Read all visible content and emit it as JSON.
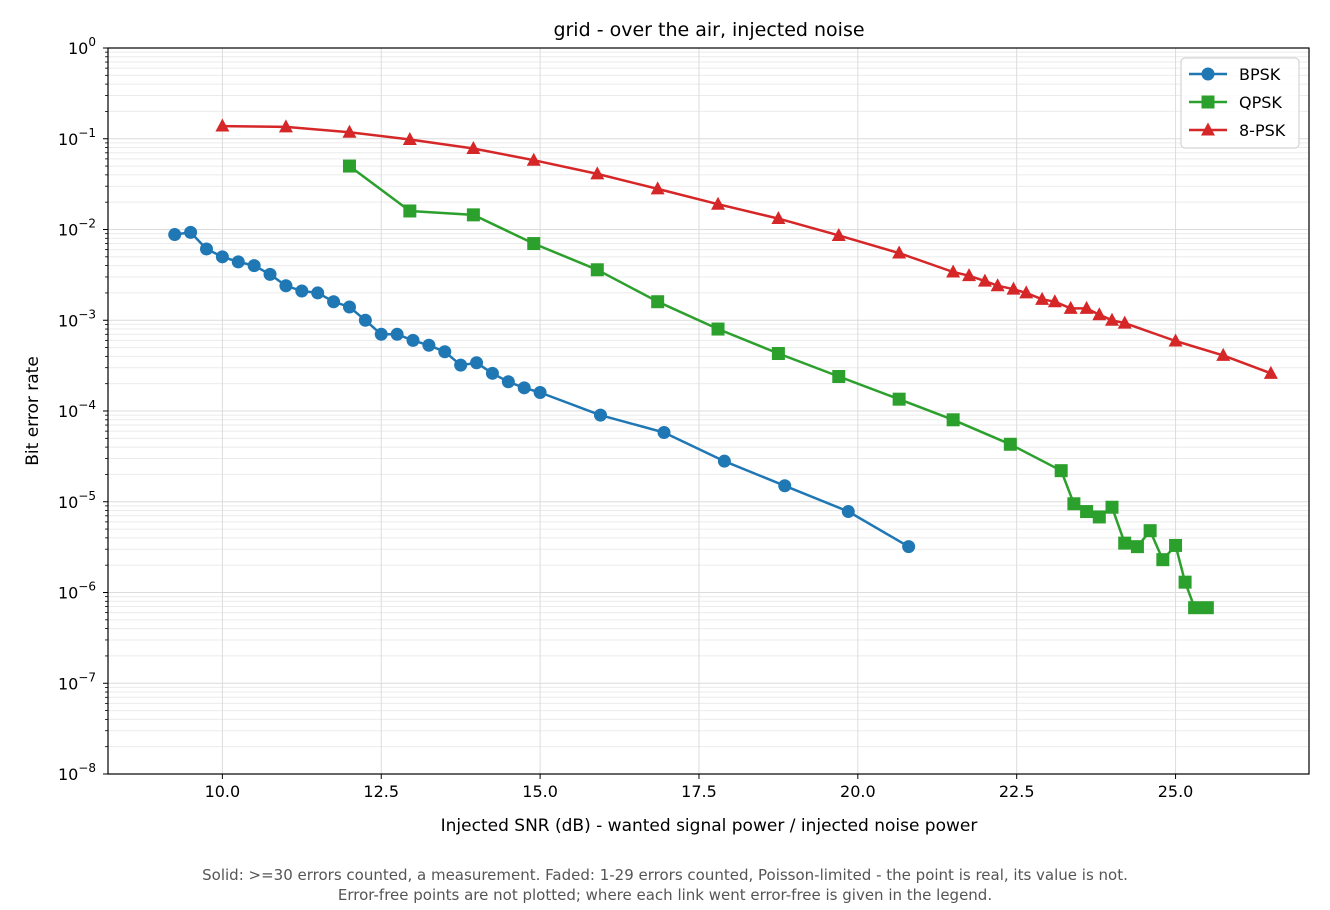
{
  "chart_data": {
    "type": "line",
    "title": "grid - over the air, injected noise",
    "xlabel": "Injected SNR (dB)  -  wanted signal power / injected noise power",
    "ylabel": "Bit error rate",
    "yscale": "log",
    "xlim": [
      8.2,
      27.1
    ],
    "ylim": [
      1e-08,
      1
    ],
    "xticks": [
      10.0,
      12.5,
      15.0,
      17.5,
      20.0,
      22.5,
      25.0
    ],
    "xtick_labels": [
      "10.0",
      "12.5",
      "15.0",
      "17.5",
      "20.0",
      "22.5",
      "25.0"
    ],
    "ytick_exponents": [
      0,
      -1,
      -2,
      -3,
      -4,
      -5,
      -6,
      -7,
      -8
    ],
    "ytick_base": "10",
    "grid": true,
    "legend_position": "top-right",
    "series": [
      {
        "name": "BPSK",
        "color": "#1f77b4",
        "marker": "circle",
        "points": [
          [
            9.25,
            0.0088
          ],
          [
            9.5,
            0.0093
          ],
          [
            9.75,
            0.0061
          ],
          [
            10.0,
            0.005
          ],
          [
            10.25,
            0.0044
          ],
          [
            10.5,
            0.004
          ],
          [
            10.75,
            0.0032
          ],
          [
            11.0,
            0.0024
          ],
          [
            11.25,
            0.0021
          ],
          [
            11.5,
            0.002
          ],
          [
            11.75,
            0.0016
          ],
          [
            12.0,
            0.0014
          ],
          [
            12.25,
            0.001
          ],
          [
            12.5,
            0.0007
          ],
          [
            12.75,
            0.0007
          ],
          [
            13.0,
            0.0006
          ],
          [
            13.25,
            0.00053
          ],
          [
            13.5,
            0.00045
          ],
          [
            13.75,
            0.00032
          ],
          [
            14.0,
            0.00034
          ],
          [
            14.25,
            0.00026
          ],
          [
            14.5,
            0.00021
          ],
          [
            14.75,
            0.00018
          ],
          [
            15.0,
            0.00016
          ],
          [
            15.95,
            9e-05
          ],
          [
            16.95,
            5.8e-05
          ],
          [
            17.9,
            2.8e-05
          ],
          [
            18.85,
            1.5e-05
          ],
          [
            19.85,
            7.8e-06
          ],
          [
            20.8,
            3.2e-06
          ]
        ]
      },
      {
        "name": "QPSK",
        "color": "#2ca02c",
        "marker": "square",
        "points": [
          [
            12.0,
            0.05
          ],
          [
            12.95,
            0.016
          ],
          [
            13.95,
            0.0145
          ],
          [
            14.9,
            0.007
          ],
          [
            15.9,
            0.0036
          ],
          [
            16.85,
            0.0016
          ],
          [
            17.8,
            0.0008
          ],
          [
            18.75,
            0.00043
          ],
          [
            19.7,
            0.00024
          ],
          [
            20.65,
            0.000135
          ],
          [
            21.5,
            8e-05
          ],
          [
            22.4,
            4.3e-05
          ],
          [
            23.2,
            2.2e-05
          ],
          [
            23.4,
            9.5e-06
          ],
          [
            23.6,
            7.8e-06
          ],
          [
            23.8,
            6.8e-06
          ],
          [
            24.0,
            8.7e-06
          ],
          [
            24.2,
            3.5e-06
          ],
          [
            24.4,
            3.2e-06
          ],
          [
            24.6,
            4.8e-06
          ],
          [
            24.8,
            2.3e-06
          ],
          [
            25.0,
            3.3e-06
          ],
          [
            25.15,
            1.3e-06
          ],
          [
            25.3,
            6.8e-07
          ],
          [
            25.5,
            6.8e-07
          ]
        ]
      },
      {
        "name": "8-PSK",
        "color": "#d62728",
        "marker": "triangle",
        "points": [
          [
            10.0,
            0.138
          ],
          [
            11.0,
            0.135
          ],
          [
            12.0,
            0.118
          ],
          [
            12.95,
            0.098
          ],
          [
            13.95,
            0.078
          ],
          [
            14.9,
            0.058
          ],
          [
            15.9,
            0.041
          ],
          [
            16.85,
            0.028
          ],
          [
            17.8,
            0.019
          ],
          [
            18.75,
            0.0132
          ],
          [
            19.7,
            0.0086
          ],
          [
            20.65,
            0.0055
          ],
          [
            21.5,
            0.0034
          ],
          [
            21.75,
            0.0031
          ],
          [
            22.0,
            0.0027
          ],
          [
            22.2,
            0.0024
          ],
          [
            22.45,
            0.0022
          ],
          [
            22.65,
            0.002
          ],
          [
            22.9,
            0.0017
          ],
          [
            23.1,
            0.0016
          ],
          [
            23.35,
            0.00135
          ],
          [
            23.6,
            0.00135
          ],
          [
            23.8,
            0.00115
          ],
          [
            24.0,
            0.001
          ],
          [
            24.2,
            0.00093
          ],
          [
            25.0,
            0.00059
          ],
          [
            25.75,
            0.00041
          ],
          [
            26.5,
            0.00026
          ]
        ]
      }
    ],
    "caption_lines": [
      "Solid: >=30 errors counted, a measurement.   Faded: 1-29 errors counted, Poisson-limited - the point is real, its value is not.",
      "Error-free points are not plotted; where each link went error-free is given in the legend."
    ]
  }
}
